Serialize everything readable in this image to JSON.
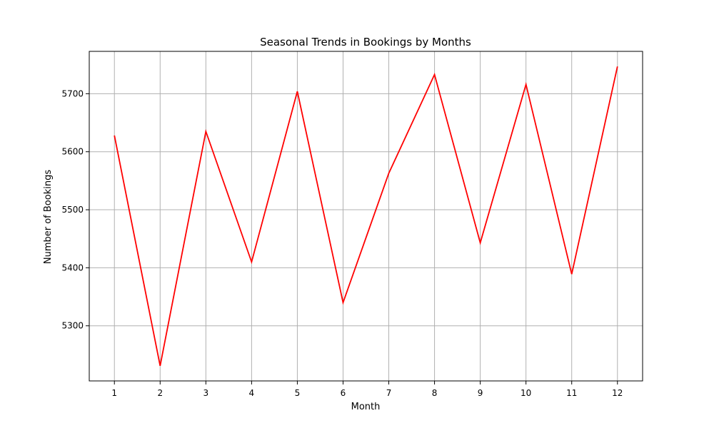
{
  "chart_data": {
    "type": "line",
    "title": "Seasonal Trends in Bookings by Months",
    "xlabel": "Month",
    "ylabel": "Number of Bookings",
    "x": [
      1,
      2,
      3,
      4,
      5,
      6,
      7,
      8,
      9,
      10,
      11,
      12
    ],
    "series": [
      {
        "values": [
          5628,
          5231,
          5635,
          5410,
          5704,
          5340,
          5563,
          5733,
          5443,
          5716,
          5389,
          5747
        ],
        "color": "#ff0000"
      }
    ],
    "xlim": [
      0.45,
      12.55
    ],
    "ylim": [
      5205,
      5773
    ],
    "xticks": [
      "1",
      "2",
      "3",
      "4",
      "5",
      "6",
      "7",
      "8",
      "9",
      "10",
      "11",
      "12"
    ],
    "yticks": [
      "5300",
      "5400",
      "5500",
      "5600",
      "5700"
    ],
    "grid": true
  }
}
